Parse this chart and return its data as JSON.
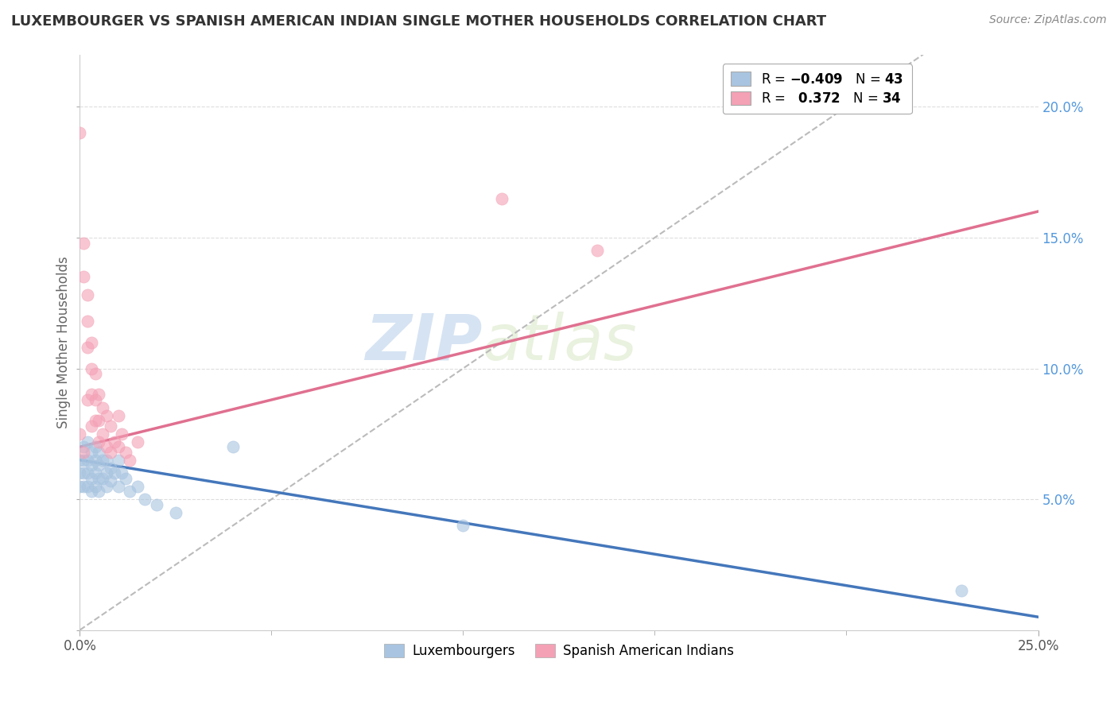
{
  "title": "LUXEMBOURGER VS SPANISH AMERICAN INDIAN SINGLE MOTHER HOUSEHOLDS CORRELATION CHART",
  "source": "Source: ZipAtlas.com",
  "ylabel": "Single Mother Households",
  "xlim": [
    0.0,
    0.25
  ],
  "ylim": [
    0.0,
    0.22
  ],
  "xticks": [
    0.0,
    0.25
  ],
  "xtick_labels": [
    "0.0%",
    "25.0%"
  ],
  "yticks": [
    0.0,
    0.05,
    0.1,
    0.15,
    0.2
  ],
  "ytick_labels_right": [
    "",
    "5.0%",
    "10.0%",
    "15.0%",
    "20.0%"
  ],
  "luxembourger_color": "#a8c4e0",
  "spanish_color": "#f4a0b5",
  "luxembourger_line_color": "#4477bb",
  "spanish_line_color": "#e07090",
  "diagonal_color": "#bbbbbb",
  "watermark_zip": "ZIP",
  "watermark_atlas": "atlas",
  "grid_color": "#dddddd",
  "lux_scatter_x": [
    0.0,
    0.0,
    0.0,
    0.001,
    0.001,
    0.001,
    0.001,
    0.002,
    0.002,
    0.002,
    0.002,
    0.003,
    0.003,
    0.003,
    0.003,
    0.004,
    0.004,
    0.004,
    0.004,
    0.005,
    0.005,
    0.005,
    0.005,
    0.006,
    0.006,
    0.007,
    0.007,
    0.007,
    0.008,
    0.008,
    0.009,
    0.01,
    0.01,
    0.011,
    0.012,
    0.013,
    0.015,
    0.017,
    0.02,
    0.025,
    0.04,
    0.1,
    0.23
  ],
  "lux_scatter_y": [
    0.065,
    0.06,
    0.055,
    0.07,
    0.065,
    0.06,
    0.055,
    0.072,
    0.065,
    0.06,
    0.055,
    0.068,
    0.063,
    0.058,
    0.053,
    0.07,
    0.065,
    0.06,
    0.055,
    0.068,
    0.063,
    0.058,
    0.053,
    0.065,
    0.058,
    0.065,
    0.06,
    0.055,
    0.062,
    0.057,
    0.06,
    0.065,
    0.055,
    0.06,
    0.058,
    0.053,
    0.055,
    0.05,
    0.048,
    0.045,
    0.07,
    0.04,
    0.015
  ],
  "spa_scatter_x": [
    0.0,
    0.0,
    0.001,
    0.001,
    0.001,
    0.002,
    0.002,
    0.002,
    0.002,
    0.003,
    0.003,
    0.003,
    0.003,
    0.004,
    0.004,
    0.004,
    0.005,
    0.005,
    0.005,
    0.006,
    0.006,
    0.007,
    0.007,
    0.008,
    0.008,
    0.009,
    0.01,
    0.01,
    0.011,
    0.012,
    0.013,
    0.015,
    0.11,
    0.135
  ],
  "spa_scatter_y": [
    0.19,
    0.075,
    0.148,
    0.135,
    0.068,
    0.128,
    0.118,
    0.108,
    0.088,
    0.11,
    0.1,
    0.09,
    0.078,
    0.098,
    0.088,
    0.08,
    0.09,
    0.08,
    0.072,
    0.085,
    0.075,
    0.082,
    0.07,
    0.078,
    0.068,
    0.072,
    0.082,
    0.07,
    0.075,
    0.068,
    0.065,
    0.072,
    0.165,
    0.145
  ],
  "lux_line_x": [
    0.0,
    0.25
  ],
  "lux_line_y": [
    0.065,
    0.005
  ],
  "spa_line_x": [
    0.0,
    0.25
  ],
  "spa_line_y": [
    0.07,
    0.16
  ],
  "diag_line_x": [
    0.0,
    0.22
  ],
  "diag_line_y": [
    0.0,
    0.22
  ],
  "legend1_R1": "R = ",
  "legend1_R2": "R = ",
  "legend1_V2": " 0.372"
}
